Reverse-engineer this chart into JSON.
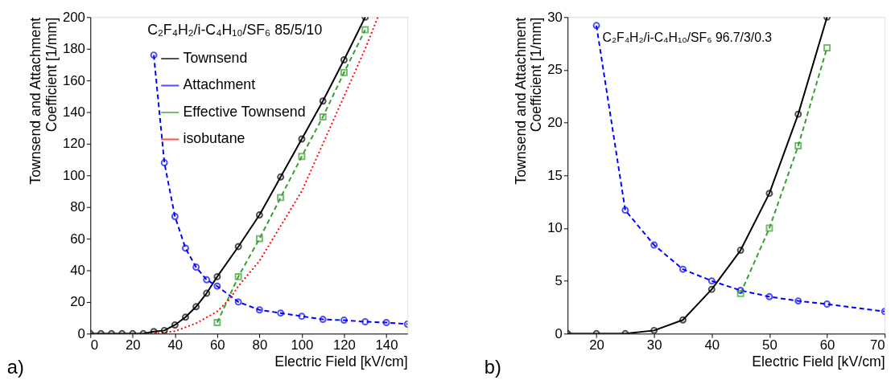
{
  "chart_data": [
    {
      "type": "line",
      "title": "C₂F₄H₂/i-C₄H₁₀/SF₆ 85/5/10",
      "xlabel": "Electric Field [kV/cm]",
      "ylabel": "Townsend and Attachment\nCoefficient [1/mm]",
      "xlim": [
        0,
        150
      ],
      "xticks": [
        0,
        20,
        40,
        60,
        80,
        100,
        120,
        140
      ],
      "ylim": [
        0,
        200
      ],
      "yticks": [
        0,
        20,
        40,
        60,
        80,
        100,
        120,
        140,
        160,
        180,
        200
      ],
      "grid": false,
      "legend": "top left",
      "annotations": [
        "a)"
      ],
      "series": [
        {
          "name": "Townsend",
          "color": "#000000",
          "line_style": "solid",
          "marker": "circle",
          "x": [
            0,
            5,
            10,
            15,
            20,
            25,
            30,
            35,
            40,
            45,
            50,
            55,
            60,
            70,
            80,
            90,
            100,
            110,
            120,
            130
          ],
          "values": [
            0,
            0,
            0,
            0,
            0,
            0,
            1.3,
            2,
            5.5,
            10.4,
            17,
            25.5,
            36,
            55,
            75,
            99,
            123,
            147,
            173,
            200
          ]
        },
        {
          "name": "Attachment",
          "color": "#0000ff",
          "line_style": "dashed",
          "marker": "circle",
          "x": [
            30,
            35,
            40,
            45,
            50,
            55,
            60,
            70,
            80,
            90,
            100,
            110,
            120,
            130,
            140,
            150
          ],
          "values": [
            176,
            108,
            74,
            54,
            42,
            34,
            30,
            20,
            15,
            13,
            11,
            9,
            8.5,
            7.5,
            7,
            6
          ]
        },
        {
          "name": "Effective\nTownsend",
          "color": "#33a02c",
          "line_style": "dashed",
          "marker": "square",
          "x": [
            60,
            70,
            80,
            90,
            100,
            110,
            120,
            130
          ],
          "values": [
            7,
            36,
            60,
            86,
            112,
            137,
            165,
            192
          ]
        },
        {
          "name": "isobutane",
          "color": "#ff0000",
          "line_style": "dotted",
          "marker": "none",
          "x": [
            30,
            40,
            50,
            60,
            66,
            70,
            80,
            90,
            100,
            110,
            120,
            130,
            136
          ],
          "values": [
            0,
            1.5,
            6.5,
            14,
            22,
            30,
            46,
            68,
            90,
            120,
            150,
            180,
            200
          ]
        }
      ]
    },
    {
      "type": "line",
      "title": "C₂F₄H₂/i-C₄H₁₀/SF₆ 96.7/3/0.3",
      "xlabel": "Electric Field [kV/cm]",
      "ylabel": "Townsend and Attachment\nCoefficient [1/mm]",
      "xlim": [
        15,
        70
      ],
      "xticks": [
        20,
        30,
        40,
        50,
        60,
        70
      ],
      "ylim": [
        0,
        30
      ],
      "yticks": [
        0,
        5,
        10,
        15,
        20,
        25,
        30
      ],
      "grid": false,
      "legend": "top left",
      "annotations": [
        "b)"
      ],
      "series": [
        {
          "name": "Townsend",
          "color": "#000000",
          "line_style": "solid",
          "marker": "circle",
          "x": [
            15,
            20,
            25,
            30,
            35,
            40,
            45,
            50,
            55,
            60
          ],
          "values": [
            0,
            0,
            0,
            0.3,
            1.3,
            4.2,
            7.9,
            13.3,
            20.8,
            30
          ]
        },
        {
          "name": "Attachment",
          "color": "#0000ff",
          "line_style": "dashed",
          "marker": "circle",
          "x": [
            20,
            25,
            30,
            35,
            40,
            45,
            50,
            55,
            60,
            70
          ],
          "values": [
            29.2,
            11.7,
            8.4,
            6.1,
            5,
            4.1,
            3.5,
            3.1,
            2.8,
            2.1
          ]
        },
        {
          "name": "Effective\nTownsend",
          "color": "#33a02c",
          "line_style": "dashed",
          "marker": "square",
          "x": [
            45,
            50,
            55,
            60
          ],
          "values": [
            3.8,
            10,
            17.8,
            27.1
          ]
        }
      ]
    }
  ]
}
